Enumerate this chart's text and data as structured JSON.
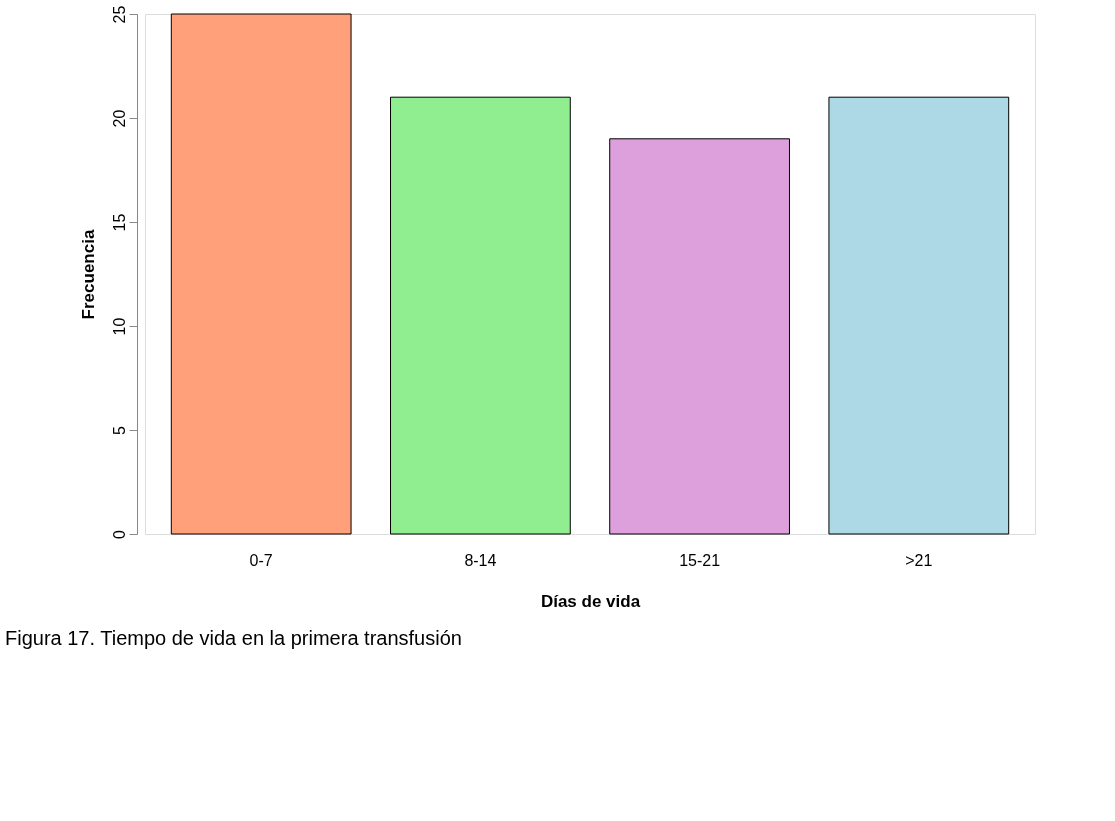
{
  "chart_data": {
    "type": "bar",
    "xlabel": "Días de vida",
    "ylabel": "Frecuencia",
    "categories": [
      "0-7",
      "8-14",
      "15-21",
      ">21"
    ],
    "values": [
      25,
      21,
      19,
      21
    ],
    "colors": [
      "#ffa07a",
      "#90ee90",
      "#dda0dd",
      "#add8e6"
    ],
    "ylim": [
      0,
      25
    ],
    "yticks": [
      0,
      5,
      10,
      15,
      20,
      25
    ],
    "grid": false,
    "annotations": [
      "Figura  17. Tiempo de vida en la primera transfusión"
    ]
  }
}
